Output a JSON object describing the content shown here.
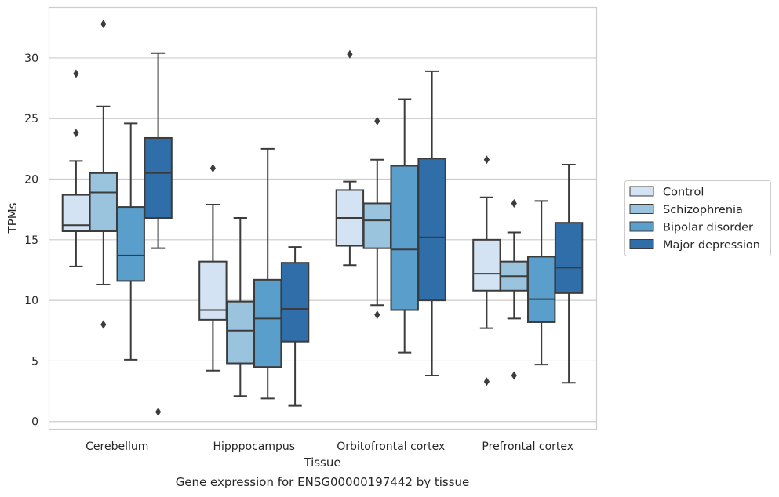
{
  "caption": "Gene expression for ENSG00000197442 by tissue",
  "chart_data": {
    "type": "boxplot",
    "xlabel": "Tissue",
    "ylabel": "TPMs",
    "ylim": [
      -0.6,
      34.2
    ],
    "yticks": [
      0,
      5,
      10,
      15,
      20,
      25,
      30
    ],
    "grid": "horizontal",
    "legend_position": "right",
    "categories": [
      "Cerebellum",
      "Hipppocampus",
      "Orbitofrontal cortex",
      "Prefrontal cortex"
    ],
    "series": [
      {
        "name": "Control",
        "color": "#d3e3f3",
        "boxes": [
          {
            "whislo": 12.8,
            "q1": 15.7,
            "med": 16.2,
            "q3": 18.7,
            "whishi": 21.5,
            "fliers": [
              28.7,
              23.8
            ]
          },
          {
            "whislo": 4.2,
            "q1": 8.4,
            "med": 9.2,
            "q3": 13.2,
            "whishi": 17.9,
            "fliers": [
              20.9
            ]
          },
          {
            "whislo": 12.9,
            "q1": 14.5,
            "med": 16.8,
            "q3": 19.1,
            "whishi": 19.8,
            "fliers": [
              30.3
            ]
          },
          {
            "whislo": 7.7,
            "q1": 10.8,
            "med": 12.2,
            "q3": 15.0,
            "whishi": 18.5,
            "fliers": [
              21.6,
              3.3
            ]
          }
        ]
      },
      {
        "name": "Schizophrenia",
        "color": "#9ac3de",
        "boxes": [
          {
            "whislo": 11.3,
            "q1": 15.7,
            "med": 18.9,
            "q3": 20.5,
            "whishi": 26.0,
            "fliers": [
              32.8,
              8.0
            ]
          },
          {
            "whislo": 2.1,
            "q1": 4.8,
            "med": 7.5,
            "q3": 9.9,
            "whishi": 16.8,
            "fliers": []
          },
          {
            "whislo": 9.6,
            "q1": 14.3,
            "med": 16.6,
            "q3": 18.0,
            "whishi": 21.6,
            "fliers": [
              24.8,
              8.8
            ]
          },
          {
            "whislo": 8.5,
            "q1": 10.8,
            "med": 12.0,
            "q3": 13.2,
            "whishi": 15.6,
            "fliers": [
              18.0,
              3.8
            ]
          }
        ]
      },
      {
        "name": "Bipolar disorder",
        "color": "#5a9ecb",
        "boxes": [
          {
            "whislo": 5.1,
            "q1": 11.6,
            "med": 13.7,
            "q3": 17.7,
            "whishi": 24.6,
            "fliers": []
          },
          {
            "whislo": 1.9,
            "q1": 4.5,
            "med": 8.5,
            "q3": 11.7,
            "whishi": 22.5,
            "fliers": []
          },
          {
            "whislo": 5.7,
            "q1": 9.2,
            "med": 14.2,
            "q3": 21.1,
            "whishi": 26.6,
            "fliers": []
          },
          {
            "whislo": 4.7,
            "q1": 8.2,
            "med": 10.1,
            "q3": 13.6,
            "whishi": 18.2,
            "fliers": []
          }
        ]
      },
      {
        "name": "Major depression",
        "color": "#2f6ea9",
        "boxes": [
          {
            "whislo": 14.3,
            "q1": 16.8,
            "med": 20.5,
            "q3": 23.4,
            "whishi": 30.4,
            "fliers": [
              0.8
            ]
          },
          {
            "whislo": 1.3,
            "q1": 6.6,
            "med": 9.3,
            "q3": 13.1,
            "whishi": 14.4,
            "fliers": []
          },
          {
            "whislo": 3.8,
            "q1": 10.0,
            "med": 15.2,
            "q3": 21.7,
            "whishi": 28.9,
            "fliers": []
          },
          {
            "whislo": 3.2,
            "q1": 10.6,
            "med": 12.7,
            "q3": 16.4,
            "whishi": 21.2,
            "fliers": []
          }
        ]
      }
    ]
  }
}
